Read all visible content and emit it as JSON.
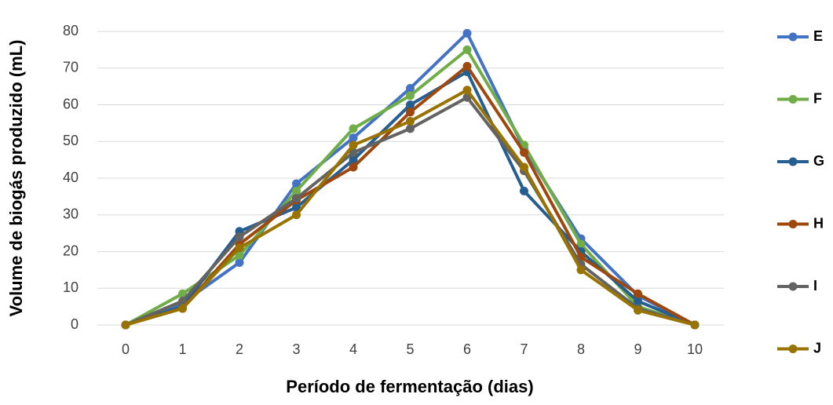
{
  "chart_data": {
    "type": "line",
    "x_label": "Período de fermentação (dias)",
    "y_label": "Volume de biogás produzido (mL)",
    "x": [
      0,
      1,
      2,
      3,
      4,
      5,
      6,
      7,
      8,
      9,
      10
    ],
    "xlim": [
      0,
      10
    ],
    "xticks": [
      0,
      1,
      2,
      3,
      4,
      5,
      6,
      7,
      8,
      9,
      10
    ],
    "ylim": [
      0,
      80
    ],
    "yticks": [
      0,
      10,
      20,
      30,
      40,
      50,
      60,
      70,
      80
    ],
    "grid": true,
    "legend": "right",
    "series": [
      {
        "name": "E",
        "color": "#4472c4",
        "values": [
          0,
          6,
          17,
          38.5,
          51,
          64.5,
          79.5,
          48,
          23.5,
          8,
          0
        ]
      },
      {
        "name": "F",
        "color": "#70ad47",
        "values": [
          0,
          8.5,
          19,
          36.5,
          53.5,
          62.5,
          75,
          49,
          22,
          5,
          0
        ]
      },
      {
        "name": "G",
        "color": "#255e91",
        "values": [
          0,
          5,
          25.5,
          32,
          45,
          60,
          69,
          36.5,
          20,
          6.5,
          0
        ]
      },
      {
        "name": "H",
        "color": "#9e480e",
        "values": [
          0,
          4.5,
          22,
          34,
          43,
          58,
          70.5,
          47,
          18.5,
          8.5,
          0
        ]
      },
      {
        "name": "I",
        "color": "#636363",
        "values": [
          0,
          6.5,
          24,
          34.5,
          47,
          53.5,
          62,
          42,
          16.5,
          4.5,
          0
        ]
      },
      {
        "name": "J",
        "color": "#997300",
        "values": [
          0,
          4.5,
          21,
          30,
          49,
          55.5,
          64,
          43,
          15,
          4,
          0
        ]
      }
    ]
  }
}
